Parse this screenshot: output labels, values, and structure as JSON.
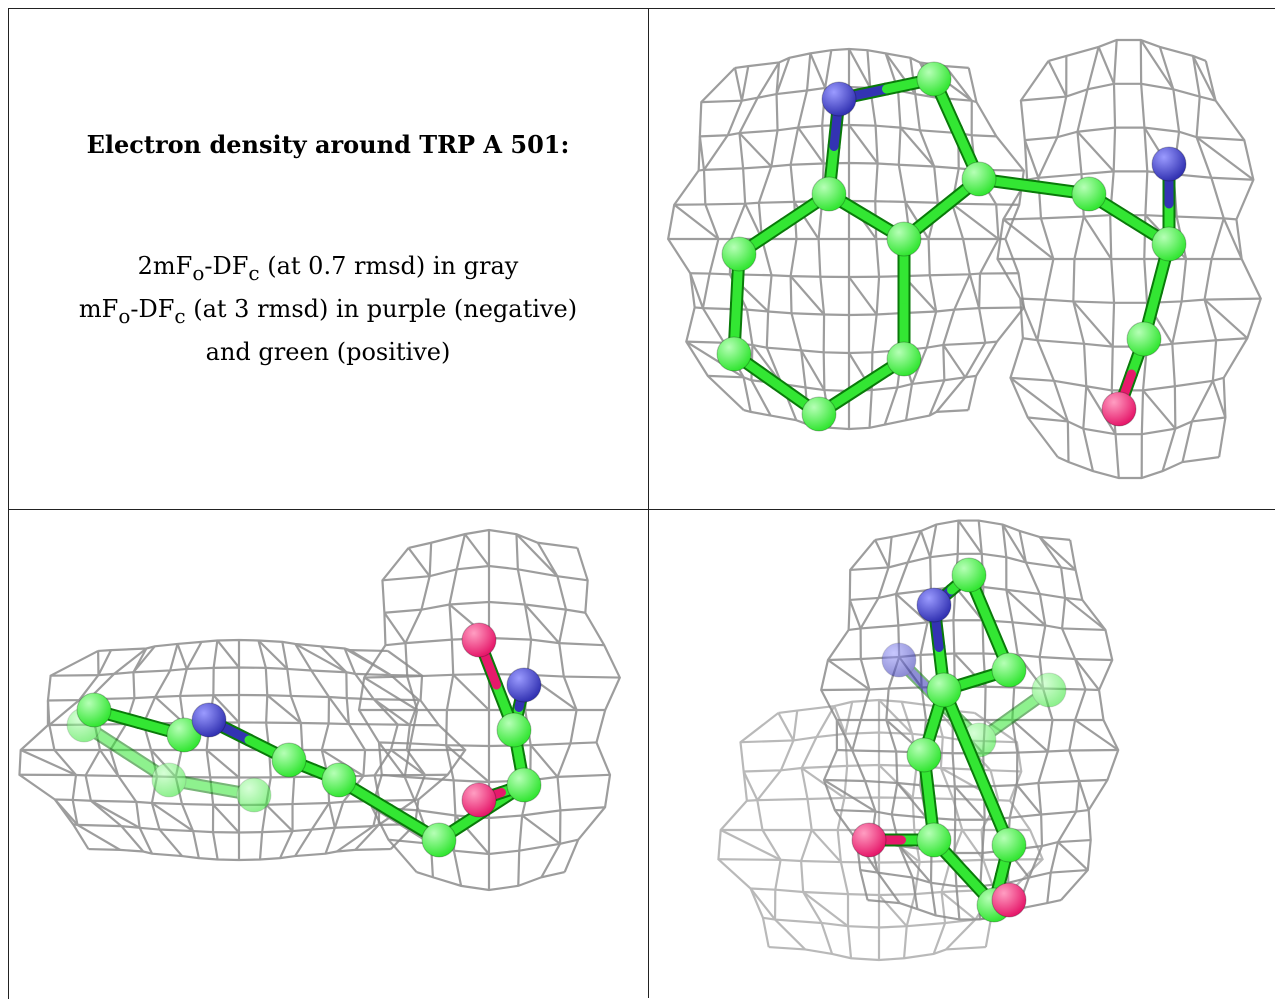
{
  "title": "Electron density around TRP A 501:",
  "lines": [
    {
      "pre": "2mF",
      "sub1": "o",
      "mid": "-DF",
      "sub2": "c",
      "post": " (at 0.7 rmsd) in gray"
    },
    {
      "pre": "mF",
      "sub1": "o",
      "mid": "-DF",
      "sub2": "c",
      "post": " (at 3 rmsd) in purple (negative)"
    },
    {
      "pre": "",
      "sub1": "",
      "mid": "",
      "sub2": "",
      "post": "and green (positive)"
    }
  ],
  "colors": {
    "mesh": "#8c8c8c",
    "carbon": "#33e633",
    "nitrogen": "#3333b3",
    "oxygen": "#e6196b"
  },
  "panels": [
    {
      "name": "view-front",
      "description_icon": "molecule-mesh-icon"
    },
    {
      "name": "view-side",
      "description_icon": "molecule-mesh-icon"
    },
    {
      "name": "view-end",
      "description_icon": "molecule-mesh-icon"
    }
  ]
}
